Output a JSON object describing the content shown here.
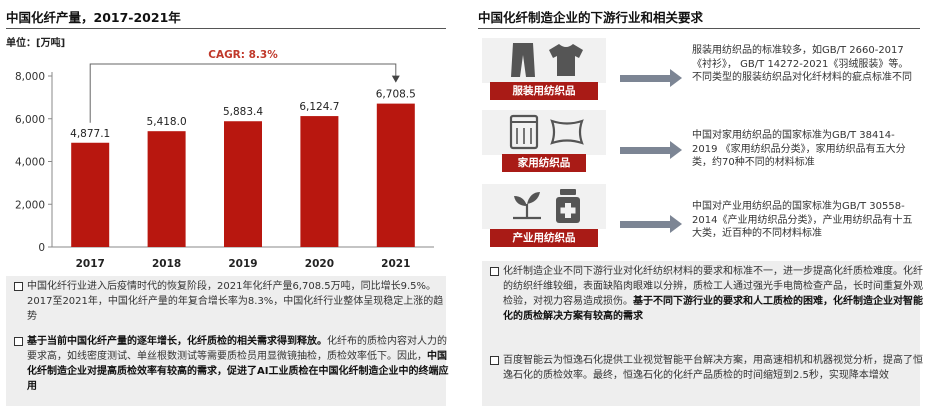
{
  "left": {
    "title": "中国化纤产量，2017-2021年",
    "unit_label": "单位：[万吨]",
    "cagr_label": "CAGR: 8.3%",
    "bullets": [
      {
        "text": "中国化纤行业进入后疫情时代的恢复阶段，2021年化纤产量6,708.5万吨，同比增长9.5%。2017至2021年，中国化纤产量的年复合增长率为8.3%，中国化纤行业整体呈现稳定上涨的趋势"
      },
      {
        "bold": "基于当前中国化纤产量的逐年增长，化纤质检的相关需求得到释放。",
        "text": "化纤布的质检内容对人力的要求高，如线密度测试、单丝根数测试等需要质检员用显微镜抽检，质检效率低下。因此，",
        "bold2": "中国化纤制造企业对提高质检效率有较高的需求，促进了AI工业质检在中国化纤制造企业中的终端应用"
      }
    ]
  },
  "chart_data": {
    "type": "bar",
    "categories": [
      "2017",
      "2018",
      "2019",
      "2020",
      "2021"
    ],
    "values": [
      4877.1,
      5418.0,
      5883.4,
      6124.7,
      6708.5
    ],
    "value_labels": [
      "4,877.1",
      "5,418.0",
      "5,883.4",
      "6,124.7",
      "6,708.5"
    ],
    "yticks": [
      "0",
      "2,000",
      "4,000",
      "6,000",
      "8,000"
    ],
    "ytick_values": [
      0,
      2000,
      4000,
      6000,
      8000
    ],
    "ylim": [
      0,
      8000
    ],
    "bar_color": "#b8170f",
    "annotation": "CAGR: 8.3%"
  },
  "right": {
    "title": "中国化纤制造企业的下游行业和相关要求",
    "categories": [
      {
        "label": "服装用纺织品",
        "icons": [
          "pants-icon",
          "tshirt-icon"
        ],
        "desc": "服装用纺织品的标准较多，如GB/T 2660-2017《衬衫》， GB/T 14272-2021《羽绒服装》等。不同类型的服装纺织品对化纤材料的疵点标准不同"
      },
      {
        "label": "家用纺织品",
        "icons": [
          "towel-icon",
          "pillow-icon"
        ],
        "desc": "中国对家用纺织品的国家标准为GB/T 38414-2019 《家用纺织品分类》，家用纺织品有五大分类，约70种不同的材料标准"
      },
      {
        "label": "产业用纺织品",
        "icons": [
          "sprout-icon",
          "medicine-icon"
        ],
        "desc": "中国对产业用纺织品的国家标准为GB/T 30558-2014《产业用纺织品分类》，产业用纺织品有十五大类，近百种的不同材料标准"
      }
    ],
    "bullets": [
      {
        "text": "化纤制造企业不同下游行业对化纤纺织材料的要求和标准不一，进一步提高化纤质检难度。化纤的纺织纤维较细，表面缺陷肉眼难以分辨，质检工人通过强光手电筒检查产品，长时间重复外观检验，对视力容易造成损伤。",
        "bold": "基于不同下游行业的要求和人工质检的困难，化纤制造企业对智能化的质检解决方案有较高的需求"
      },
      {
        "text": "百度智能云为恒逸石化提供工业视觉智能平台解决方案，用高速相机和机器视觉分析，提高了恒逸石化的质检效率。最终，恒逸石化的化纤产品质检的时间缩短到2.5秒，实现降本增效"
      }
    ]
  }
}
